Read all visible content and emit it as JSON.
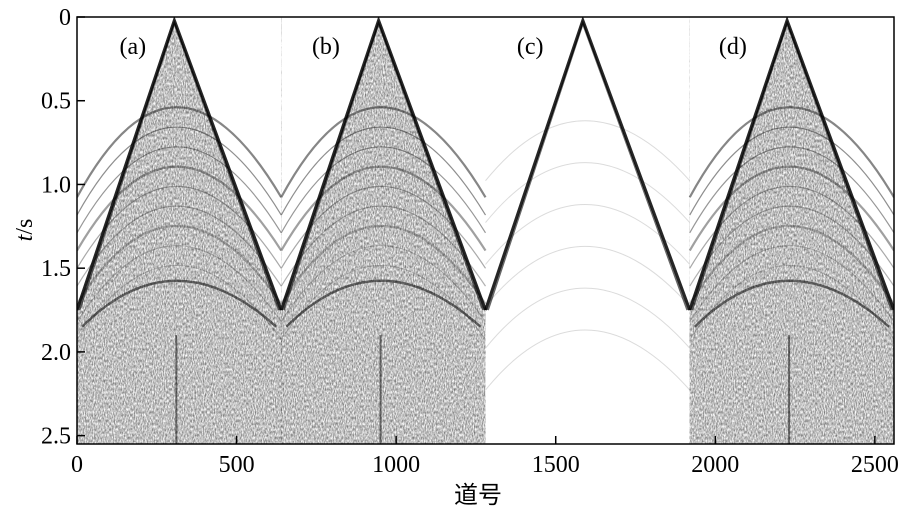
{
  "chart_data": {
    "type": "heatmap",
    "title": "",
    "xlabel": "道号",
    "ylabel_italic": "t",
    "ylabel_unit": "/s",
    "xlim": [
      0,
      2560
    ],
    "ylim": [
      0,
      2.55
    ],
    "y_inverted": true,
    "colormap": "grayscale",
    "xticks": [
      {
        "value": 0,
        "label": "0"
      },
      {
        "value": 500,
        "label": "500"
      },
      {
        "value": 1000,
        "label": "1000"
      },
      {
        "value": 1500,
        "label": "1500"
      },
      {
        "value": 2000,
        "label": "2000"
      },
      {
        "value": 2500,
        "label": "2500"
      }
    ],
    "yticks": [
      {
        "value": 0,
        "label": "0"
      },
      {
        "value": 0.5,
        "label": "0.5"
      },
      {
        "value": 1.0,
        "label": "1.0"
      },
      {
        "value": 1.5,
        "label": "1.5"
      },
      {
        "value": 2.0,
        "label": "2.0"
      },
      {
        "value": 2.5,
        "label": "2.5"
      }
    ],
    "panels": [
      {
        "label": "(a)",
        "trace_start": 0,
        "trace_end": 640,
        "apex_trace": 305,
        "label_trace": 175,
        "style": "full"
      },
      {
        "label": "(b)",
        "trace_start": 640,
        "trace_end": 1280,
        "apex_trace": 945,
        "label_trace": 780,
        "style": "full"
      },
      {
        "label": "(c)",
        "trace_start": 1280,
        "trace_end": 1920,
        "apex_trace": 1585,
        "label_trace": 1420,
        "style": "direct"
      },
      {
        "label": "(d)",
        "trace_start": 1920,
        "trace_end": 2560,
        "apex_trace": 2225,
        "label_trace": 2055,
        "style": "full"
      }
    ]
  }
}
